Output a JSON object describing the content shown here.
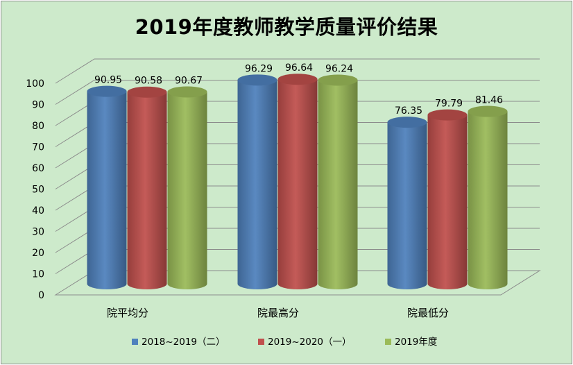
{
  "chart_data": {
    "type": "bar",
    "title": "2019年度教师教学质量评价结果",
    "categories": [
      "院平均分",
      "院最高分",
      "院最低分"
    ],
    "series": [
      {
        "name": "2018~2019（二）",
        "color": "#4f81bd",
        "values": [
          90.95,
          96.29,
          76.35
        ]
      },
      {
        "name": "2019~2020（一）",
        "color": "#c0504d",
        "values": [
          90.58,
          96.64,
          79.79
        ]
      },
      {
        "name": "2019年度",
        "color": "#9bbb59",
        "values": [
          90.67,
          96.24,
          81.46
        ]
      }
    ],
    "ylim": [
      0,
      100
    ],
    "yticks": [
      0,
      10,
      20,
      30,
      40,
      50,
      60,
      70,
      80,
      90,
      100
    ],
    "grid": true,
    "legend_position": "bottom",
    "bar_shape": "cylinder-3d"
  }
}
